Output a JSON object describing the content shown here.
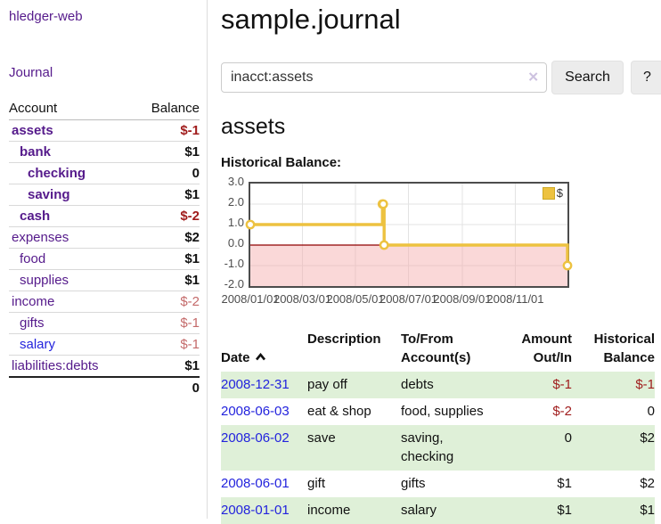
{
  "app": {
    "brand": "hledger-web"
  },
  "colors": {
    "link_purple": "#551a8b",
    "link_blue": "#2323dd",
    "negative_strong": "#a01d1d",
    "negative_muted": "#c46a6a",
    "row_stripe_green": "#dff0d8",
    "series_yellow": "#edc240"
  },
  "sidebar": {
    "journal_label": "Journal",
    "accounts_table": {
      "headers": [
        "Account",
        "Balance"
      ],
      "rows": [
        {
          "label": "assets",
          "indent": 1,
          "bold": true,
          "link": "purple",
          "balance": "$-1",
          "bstyle": "neg-strong"
        },
        {
          "label": "bank",
          "indent": 2,
          "bold": true,
          "link": "purple",
          "balance": "$1",
          "bstyle": "bold"
        },
        {
          "label": "checking",
          "indent": 3,
          "bold": true,
          "link": "purple",
          "balance": "0",
          "bstyle": "bold"
        },
        {
          "label": "saving",
          "indent": 3,
          "bold": true,
          "link": "purple",
          "balance": "$1",
          "bstyle": "bold"
        },
        {
          "label": "cash",
          "indent": 2,
          "bold": true,
          "link": "purple",
          "balance": "$-2",
          "bstyle": "neg-strong"
        },
        {
          "label": "expenses",
          "indent": 1,
          "bold": false,
          "link": "purple",
          "balance": "$2",
          "bstyle": "bold"
        },
        {
          "label": "food",
          "indent": 2,
          "bold": false,
          "link": "purple",
          "balance": "$1",
          "bstyle": "bold"
        },
        {
          "label": "supplies",
          "indent": 2,
          "bold": false,
          "link": "purple",
          "balance": "$1",
          "bstyle": "bold"
        },
        {
          "label": "income",
          "indent": 1,
          "bold": false,
          "link": "purple",
          "balance": "$-2",
          "bstyle": "neg-muted"
        },
        {
          "label": "gifts",
          "indent": 2,
          "bold": false,
          "link": "purple",
          "balance": "$-1",
          "bstyle": "neg-muted"
        },
        {
          "label": "salary",
          "indent": 2,
          "bold": false,
          "link": "blue",
          "balance": "$-1",
          "bstyle": "neg-muted"
        },
        {
          "label": "liabilities:debts",
          "indent": 1,
          "bold": false,
          "link": "purple",
          "balance": "$1",
          "bstyle": "bold"
        }
      ],
      "total": "0"
    }
  },
  "main": {
    "title": "sample.journal",
    "search": {
      "value": "inacct:assets",
      "clear_icon": "✕",
      "button_label": "Search",
      "help_label": "?"
    },
    "account_heading": "assets",
    "chart_heading": "Historical Balance:"
  },
  "chart_data": {
    "type": "line",
    "step": true,
    "title": "Historical Balance:",
    "legend_position": "top-right",
    "grid": true,
    "x_range": [
      "2008-01-01",
      "2008-12-31"
    ],
    "ylim": [
      -2,
      3
    ],
    "series": [
      {
        "name": "$",
        "color": "#edc240",
        "points": [
          {
            "date": "2008-01-01",
            "value": 1
          },
          {
            "date": "2008-06-01",
            "value": 2
          },
          {
            "date": "2008-06-02",
            "value": 2
          },
          {
            "date": "2008-06-03",
            "value": 0
          },
          {
            "date": "2008-12-31",
            "value": -1
          }
        ]
      }
    ],
    "y_ticks": [
      {
        "value": 3,
        "label": "3.0"
      },
      {
        "value": 2,
        "label": "2.0"
      },
      {
        "value": 1,
        "label": "1.0"
      },
      {
        "value": 0,
        "label": "0.0"
      },
      {
        "value": -1,
        "label": "-1.0"
      },
      {
        "value": -2,
        "label": "-2.0"
      }
    ],
    "x_ticks": [
      {
        "date": "2008-01-01",
        "label": "2008/01/01"
      },
      {
        "date": "2008-03-01",
        "label": "2008/03/01"
      },
      {
        "date": "2008-05-01",
        "label": "2008/05/01"
      },
      {
        "date": "2008-07-01",
        "label": "2008/07/01"
      },
      {
        "date": "2008-09-01",
        "label": "2008/09/01"
      },
      {
        "date": "2008-11-01",
        "label": "2008/11/01"
      }
    ],
    "negative_region_color": "#f4a8a8",
    "zero_line_color": "#8f0000",
    "series_color": "#edc240"
  },
  "register_table": {
    "headers": [
      "Date",
      "Description",
      "To/From\nAccount(s)",
      "Amount\nOut/In",
      "Historical\nBalance"
    ],
    "rows": [
      {
        "date": "2008-12-31",
        "description": "pay off",
        "accounts": "debts",
        "amount": "$-1",
        "amount_neg": true,
        "balance": "$-1",
        "balance_neg": true
      },
      {
        "date": "2008-06-03",
        "description": "eat & shop",
        "accounts": "food, supplies",
        "amount": "$-2",
        "amount_neg": true,
        "balance": "0",
        "balance_neg": false
      },
      {
        "date": "2008-06-02",
        "description": "save",
        "accounts": "saving,\nchecking",
        "amount": "0",
        "amount_neg": false,
        "balance": "$2",
        "balance_neg": false
      },
      {
        "date": "2008-06-01",
        "description": "gift",
        "accounts": "gifts",
        "amount": "$1",
        "amount_neg": false,
        "balance": "$2",
        "balance_neg": false
      },
      {
        "date": "2008-01-01",
        "description": "income",
        "accounts": "salary",
        "amount": "$1",
        "amount_neg": false,
        "balance": "$1",
        "balance_neg": false
      }
    ]
  }
}
